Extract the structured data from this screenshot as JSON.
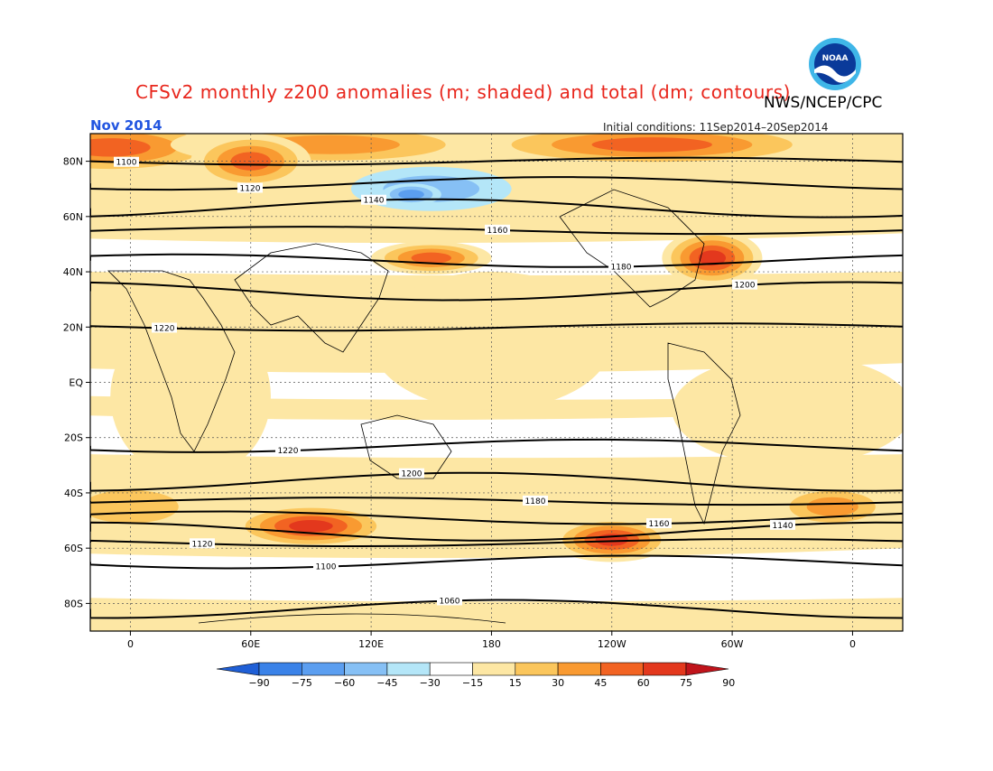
{
  "title": "CFSv2 monthly z200 anomalies (m; shaded) and total (dm; contours)",
  "agency": "NWS/NCEP/CPC",
  "logo_text": "NOAA",
  "month": "Nov 2014",
  "initial_conditions": "Initial conditions: 11Sep2014–20Sep2014",
  "lat_ticks": [
    "80N",
    "60N",
    "40N",
    "20N",
    "EQ",
    "20S",
    "40S",
    "60S",
    "80S"
  ],
  "lon_ticks": [
    "0",
    "60E",
    "120E",
    "180",
    "120W",
    "60W",
    "0"
  ],
  "colorbar": {
    "labels": [
      "−90",
      "−75",
      "−60",
      "−45",
      "−30",
      "−15",
      "15",
      "30",
      "45",
      "60",
      "75",
      "90"
    ],
    "colors": [
      "#1f5fd6",
      "#3a82e8",
      "#5b9ef0",
      "#86c0f5",
      "#b4e6f8",
      "#ffffff",
      "#fde7a4",
      "#fbc65c",
      "#f99a31",
      "#f26322",
      "#e3381d",
      "#c0141b"
    ]
  },
  "contours": [
    {
      "label": "1100",
      "lat": 80
    },
    {
      "label": "1120",
      "lat": 72
    },
    {
      "label": "1140",
      "lat": 63
    },
    {
      "label": "1160",
      "lat": 55
    },
    {
      "label": "1180",
      "lat": 44
    },
    {
      "label": "1200",
      "lat": 33
    },
    {
      "label": "1220",
      "lat": 20
    },
    {
      "label": "1220",
      "lat": -23
    },
    {
      "label": "1200",
      "lat": -36
    },
    {
      "label": "1180",
      "lat": -43
    },
    {
      "label": "1160",
      "lat": -49
    },
    {
      "label": "1140",
      "lat": -54
    },
    {
      "label": "1120",
      "lat": -58
    },
    {
      "label": "1100",
      "lat": -65
    },
    {
      "label": "1060",
      "lat": -82
    }
  ],
  "anomaly_regions": [
    {
      "lon": -10,
      "lat": 85,
      "rx": 60,
      "ry": 10,
      "value": 60
    },
    {
      "lon": 100,
      "lat": 86,
      "rx": 80,
      "ry": 8,
      "value": 45
    },
    {
      "lon": 260,
      "lat": 86,
      "rx": 90,
      "ry": 8,
      "value": 60
    },
    {
      "lon": 150,
      "lat": 70,
      "rx": 40,
      "ry": 8,
      "value": -30
    },
    {
      "lon": 140,
      "lat": 68,
      "rx": 15,
      "ry": 4,
      "value": -45
    },
    {
      "lon": 150,
      "lat": 45,
      "rx": 30,
      "ry": 6,
      "value": 60
    },
    {
      "lon": 290,
      "lat": 45,
      "rx": 25,
      "ry": 10,
      "value": 75
    },
    {
      "lon": 90,
      "lat": -52,
      "rx": 40,
      "ry": 8,
      "value": 75
    },
    {
      "lon": 240,
      "lat": -57,
      "rx": 30,
      "ry": 8,
      "value": 75
    },
    {
      "lon": 180,
      "lat": 15,
      "rx": 60,
      "ry": 25,
      "value": 15
    },
    {
      "lon": 30,
      "lat": -5,
      "rx": 40,
      "ry": 30,
      "value": 15
    },
    {
      "lon": 330,
      "lat": -10,
      "rx": 60,
      "ry": 20,
      "value": 15
    },
    {
      "lon": 350,
      "lat": -45,
      "rx": 30,
      "ry": 8,
      "value": 45
    },
    {
      "lon": 0,
      "lat": -45,
      "rx": 40,
      "ry": 10,
      "value": 30
    },
    {
      "lon": 60,
      "lat": 80,
      "rx": 30,
      "ry": 10,
      "value": 60
    }
  ]
}
